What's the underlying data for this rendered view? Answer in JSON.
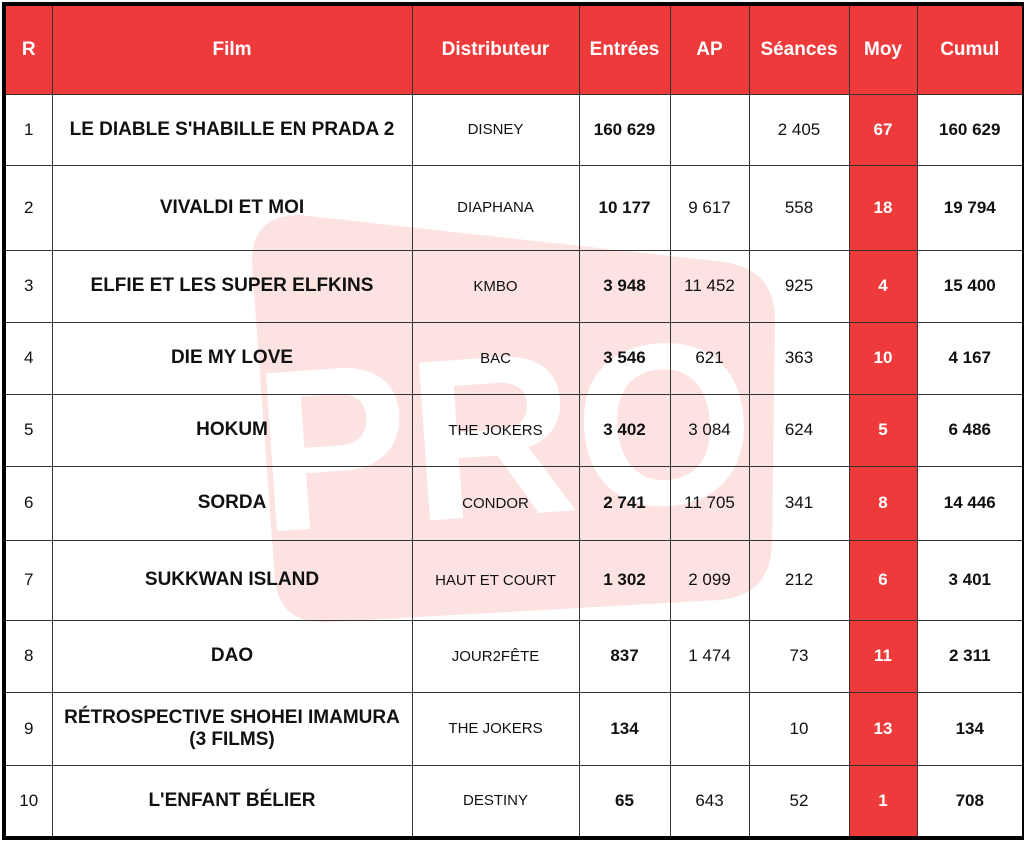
{
  "watermark": "PRO",
  "table": {
    "headers": [
      "R",
      "Film",
      "Distributeur",
      "Entrées",
      "AP",
      "Séances",
      "Moy",
      "Cumul"
    ],
    "rows": [
      {
        "rank": "1",
        "film": "LE DIABLE S'HABILLE EN PRADA 2",
        "distributor": "DISNEY",
        "entrees": "160 629",
        "ap": null,
        "seances": "2 405",
        "moy": "67",
        "cumul": "160 629"
      },
      {
        "rank": "2",
        "film": "VIVALDI ET MOI",
        "distributor": "DIAPHANA",
        "entrees": "10 177",
        "ap": "9 617",
        "seances": "558",
        "moy": "18",
        "cumul": "19 794"
      },
      {
        "rank": "3",
        "film": "ELFIE ET LES SUPER ELFKINS",
        "distributor": "KMBO",
        "entrees": "3 948",
        "ap": "11 452",
        "seances": "925",
        "moy": "4",
        "cumul": "15 400"
      },
      {
        "rank": "4",
        "film": "DIE MY LOVE",
        "distributor": "BAC",
        "entrees": "3 546",
        "ap": "621",
        "seances": "363",
        "moy": "10",
        "cumul": "4 167"
      },
      {
        "rank": "5",
        "film": "HOKUM",
        "distributor": "THE JOKERS",
        "entrees": "3 402",
        "ap": "3 084",
        "seances": "624",
        "moy": "5",
        "cumul": "6 486"
      },
      {
        "rank": "6",
        "film": "SORDA",
        "distributor": "CONDOR",
        "entrees": "2 741",
        "ap": "11 705",
        "seances": "341",
        "moy": "8",
        "cumul": "14 446"
      },
      {
        "rank": "7",
        "film": "SUKKWAN ISLAND",
        "distributor": "HAUT ET COURT",
        "entrees": "1 302",
        "ap": "2 099",
        "seances": "212",
        "moy": "6",
        "cumul": "3 401"
      },
      {
        "rank": "8",
        "film": "DAO",
        "distributor": "JOUR2FÊTE",
        "entrees": "837",
        "ap": "1 474",
        "seances": "73",
        "moy": "11",
        "cumul": "2 311"
      },
      {
        "rank": "9",
        "film": "RÉTROSPECTIVE SHOHEI IMAMURA (3 FILMS)",
        "distributor": "THE JOKERS",
        "entrees": "134",
        "ap": null,
        "seances": "10",
        "moy": "13",
        "cumul": "134"
      },
      {
        "rank": "10",
        "film": "L'ENFANT BÉLIER",
        "distributor": "DESTINY",
        "entrees": "65",
        "ap": "643",
        "seances": "52",
        "moy": "1",
        "cumul": "708"
      }
    ]
  }
}
